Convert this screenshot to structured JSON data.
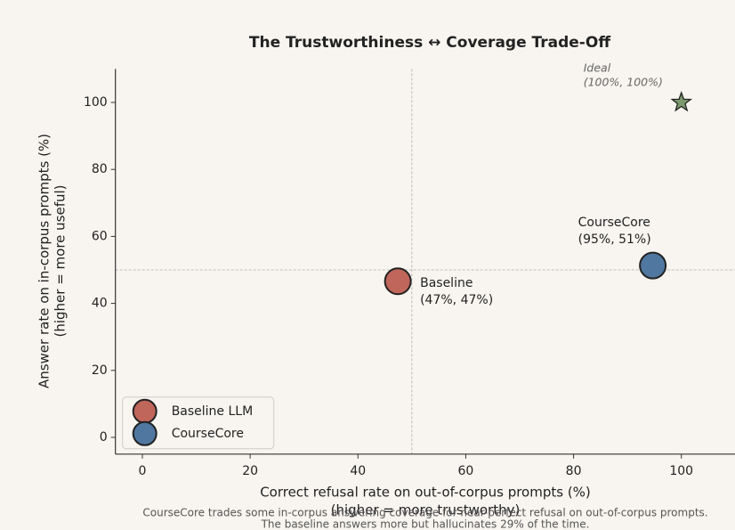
{
  "chart_data": {
    "type": "scatter",
    "title": "The Trustworthiness ↔ Coverage Trade-Off",
    "x_label": [
      "Correct refusal rate on out-of-corpus prompts (%)",
      "(higher = more trustworthy)"
    ],
    "y_label": [
      "Answer rate on in-corpus prompts (%)",
      "(higher = more useful)"
    ],
    "xlim": [
      -5,
      110
    ],
    "ylim": [
      -5,
      110
    ],
    "xticks": [
      0,
      20,
      40,
      60,
      80,
      100
    ],
    "yticks": [
      0,
      20,
      40,
      60,
      80,
      100
    ],
    "reference_lines": {
      "x": 50,
      "y": 50
    },
    "series": [
      {
        "name": "Baseline LLM",
        "color": "#c0665a",
        "x": [
          47.4
        ],
        "y": [
          46.6
        ],
        "annotation": [
          "Baseline",
          "(47%, 47%)"
        ]
      },
      {
        "name": "CourseCore",
        "color": "#4f77a0",
        "x": [
          94.7
        ],
        "y": [
          51.3
        ],
        "annotation": [
          "CourseCore",
          "(95%, 51%)"
        ]
      }
    ],
    "ideal": {
      "x": 100,
      "y": 100,
      "color": "#7d9a6f",
      "annotation": [
        "Ideal",
        "(100%, 100%)"
      ]
    },
    "legend": "lower left",
    "footnote": [
      "CourseCore trades some in-corpus answering coverage for near-perfect refusal on out-of-corpus prompts.",
      "The baseline answers more but hallucinates 29% of the time."
    ]
  }
}
